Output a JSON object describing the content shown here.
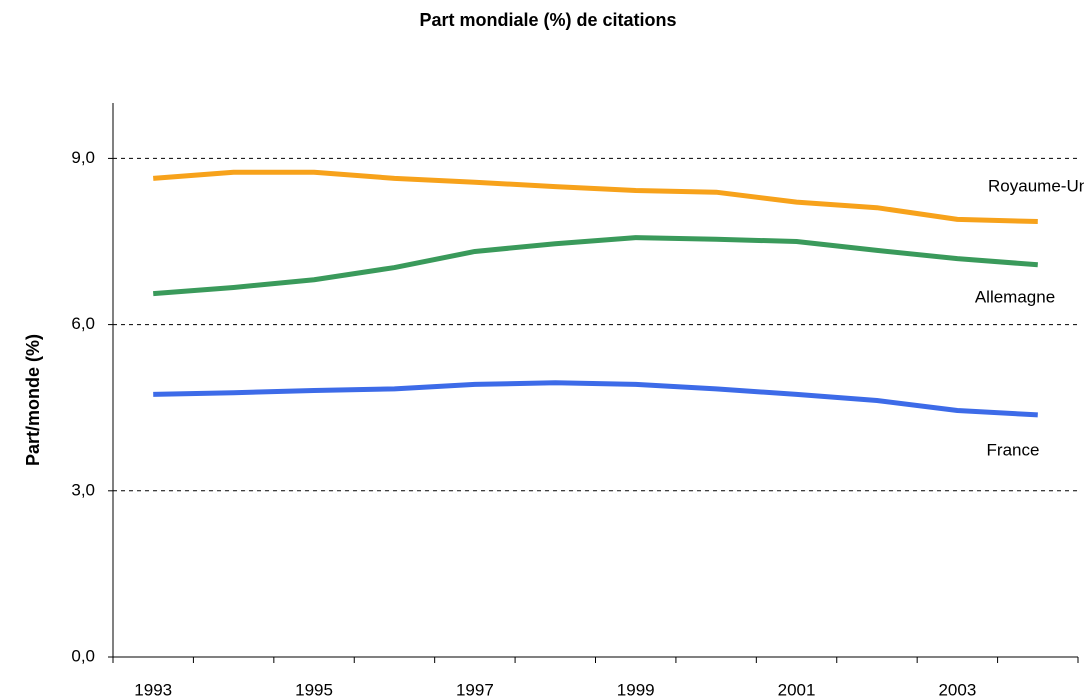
{
  "chart_data": {
    "type": "line",
    "title": "Part mondiale (%) de citations",
    "y_label": "Part/monde (%)",
    "categories": [
      "1993",
      null,
      "1995",
      null,
      "1997",
      null,
      "1999",
      null,
      "2001",
      null,
      "2003",
      null
    ],
    "series": [
      {
        "name": "Royaume-Uni",
        "color": "#f7a21b",
        "values": [
          8.64,
          8.75,
          8.75,
          8.64,
          8.57,
          8.49,
          8.42,
          8.39,
          8.21,
          8.11,
          7.9,
          7.86
        ]
      },
      {
        "name": "Allemagne",
        "color": "#3a9a5b",
        "values": [
          6.56,
          6.67,
          6.81,
          7.03,
          7.32,
          7.46,
          7.57,
          7.54,
          7.5,
          7.34,
          7.19,
          7.08
        ]
      },
      {
        "name": "France",
        "color": "#3d6be8",
        "values": [
          4.74,
          4.77,
          4.81,
          4.84,
          4.92,
          4.95,
          4.92,
          4.84,
          4.74,
          4.63,
          4.45,
          4.37
        ]
      }
    ],
    "ylim": [
      0,
      10
    ],
    "yticks": [
      {
        "value": 0,
        "label": "0,0"
      },
      {
        "value": 3,
        "label": "3,0"
      },
      {
        "value": 6,
        "label": "6,0"
      },
      {
        "value": 9,
        "label": "9,0"
      }
    ],
    "grid": true
  }
}
